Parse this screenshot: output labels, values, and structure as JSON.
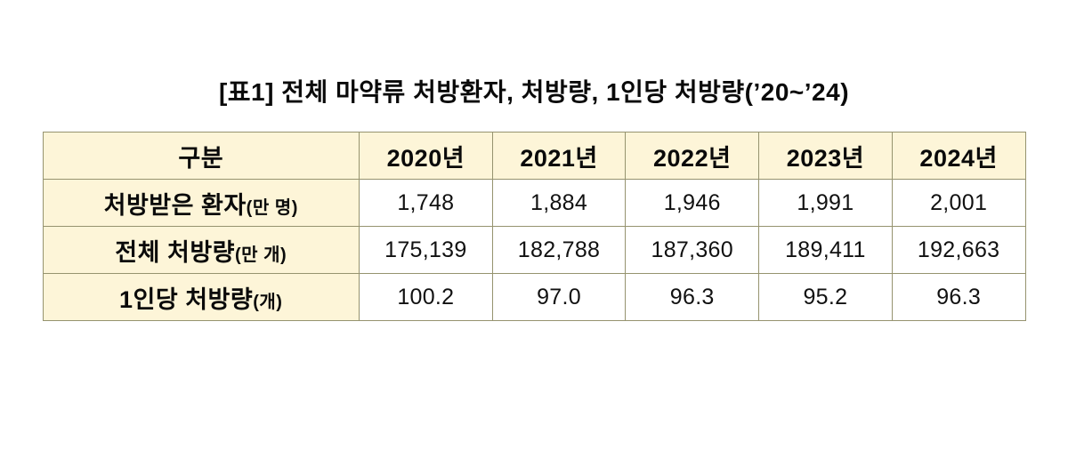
{
  "title": "[표1] 전체 마약류 처방환자, 처방량, 1인당 처방량(’20~’24)",
  "colors": {
    "header_bg": "#fdf5d8",
    "border": "#96936f",
    "text": "#111111"
  },
  "table": {
    "header": [
      "구분",
      "2020년",
      "2021년",
      "2022년",
      "2023년",
      "2024년"
    ],
    "rows": [
      {
        "label": "처방받은 환자",
        "label_unit": "(만 명)",
        "values": [
          "1,748",
          "1,884",
          "1,946",
          "1,991",
          "2,001"
        ]
      },
      {
        "label": "전체 처방량",
        "label_unit": "(만 개)",
        "values": [
          "175,139",
          "182,788",
          "187,360",
          "189,411",
          "192,663"
        ]
      },
      {
        "label": "1인당 처방량",
        "label_unit": "(개)",
        "values": [
          "100.2",
          "97.0",
          "96.3",
          "95.2",
          "96.3"
        ]
      }
    ]
  },
  "chart_data": {
    "type": "table",
    "title": "[표1] 전체 마약류 처방환자, 처방량, 1인당 처방량(’20~’24)",
    "categories": [
      "2020년",
      "2021년",
      "2022년",
      "2023년",
      "2024년"
    ],
    "series": [
      {
        "name": "처방받은 환자(만 명)",
        "values": [
          1748,
          1884,
          1946,
          1991,
          2001
        ]
      },
      {
        "name": "전체 처방량(만 개)",
        "values": [
          175139,
          182788,
          187360,
          189411,
          192663
        ]
      },
      {
        "name": "1인당 처방량(개)",
        "values": [
          100.2,
          97.0,
          96.3,
          95.2,
          96.3
        ]
      }
    ],
    "legend_position": "none",
    "grid": true
  }
}
